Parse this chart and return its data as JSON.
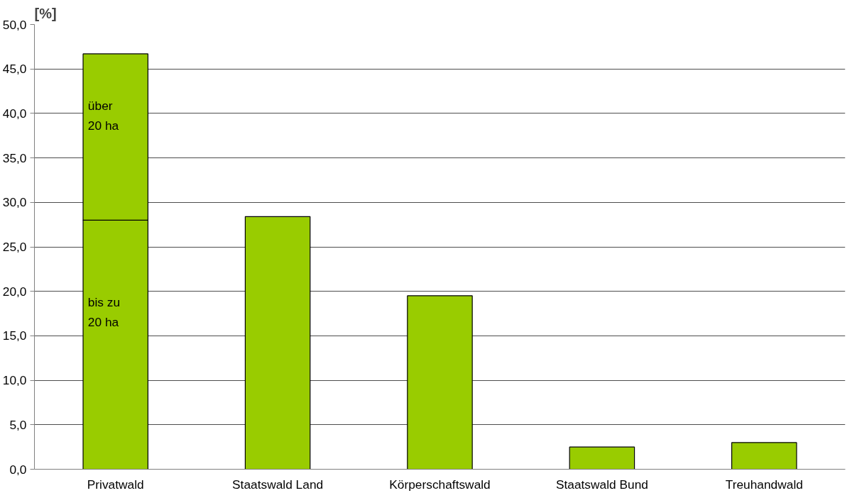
{
  "chart_data": {
    "type": "bar",
    "ylabel": "[%]",
    "categories": [
      "Privatwald",
      "Staatswald Land",
      "Körperschaftswald",
      "Staatswald Bund",
      "Treuhandwald"
    ],
    "stacked": true,
    "series": [
      {
        "name": "bis zu 20 ha",
        "color": "#99cc00",
        "values": [
          28.0,
          28.4,
          19.5,
          2.5,
          3.0
        ]
      },
      {
        "name": "über 20 ha",
        "color": "#99cc00",
        "values": [
          18.7,
          null,
          null,
          null,
          null
        ]
      }
    ],
    "ylim": [
      0,
      50
    ],
    "yticks": [
      {
        "value": 0,
        "label": "0,0"
      },
      {
        "value": 5,
        "label": "5,0"
      },
      {
        "value": 10,
        "label": "10,0"
      },
      {
        "value": 15,
        "label": "15,0"
      },
      {
        "value": 20,
        "label": "20,0"
      },
      {
        "value": 25,
        "label": "25,0"
      },
      {
        "value": 30,
        "label": "30,0"
      },
      {
        "value": 35,
        "label": "35,0"
      },
      {
        "value": 40,
        "label": "40,0"
      },
      {
        "value": 45,
        "label": "45,0"
      },
      {
        "value": 50,
        "label": "50,0"
      }
    ],
    "grid": "y"
  }
}
